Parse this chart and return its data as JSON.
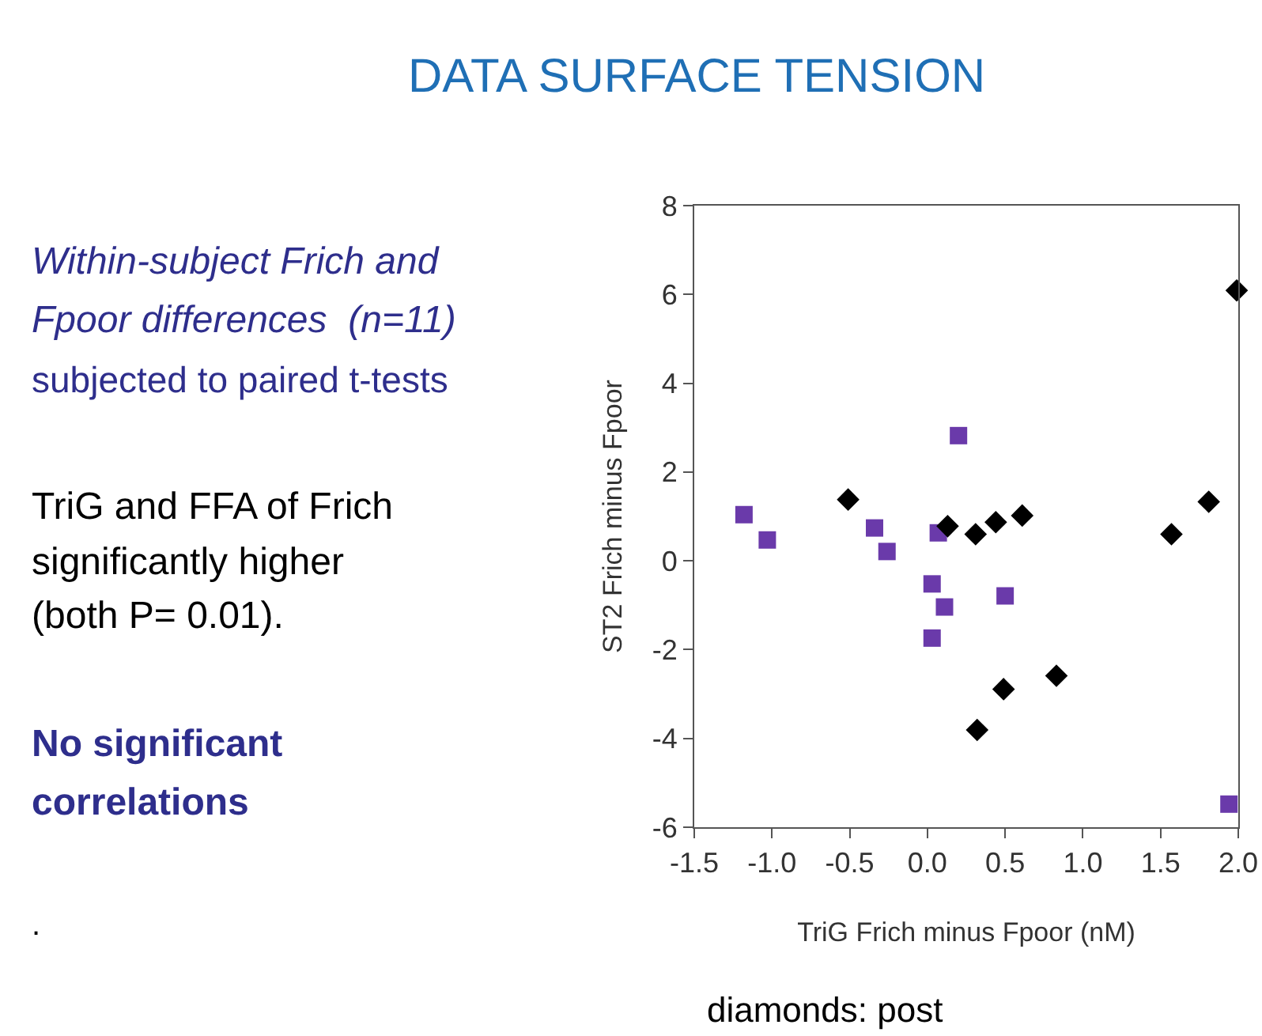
{
  "chart_data": {
    "type": "scatter",
    "title": "DATA SURFACE TENSION",
    "xlabel": "TriG Frich minus Fpoor (nM)",
    "ylabel": "ST2 Frich minus Fpoor",
    "xlim": [
      -1.5,
      2.0
    ],
    "xticks": [
      {
        "value": -1.5,
        "label": "-1.5"
      },
      {
        "value": -1.0,
        "label": "-1.0"
      },
      {
        "value": -0.5,
        "label": "-0.5"
      },
      {
        "value": 0.0,
        "label": "0.0"
      },
      {
        "value": 0.5,
        "label": "0.5"
      },
      {
        "value": 1.0,
        "label": "1.0"
      },
      {
        "value": 1.5,
        "label": "1.5"
      },
      {
        "value": 2.0,
        "label": "2.0"
      }
    ],
    "ylim": [
      -6,
      8
    ],
    "yticks": [
      -6,
      -4,
      -2,
      0,
      2,
      4,
      6,
      8
    ],
    "series": [
      {
        "color": "#6a3aaa",
        "marker": "square",
        "x": [
          -1.18,
          -1.03,
          -0.34,
          -0.26,
          0.07,
          0.03,
          0.11,
          0.03,
          0.2,
          0.5,
          1.94
        ],
        "values": [
          1.04,
          0.47,
          0.74,
          0.21,
          0.63,
          -0.52,
          -1.04,
          -1.74,
          2.82,
          -0.79,
          -5.48
        ]
      },
      {
        "color": "#000000",
        "marker": "diamond",
        "x": [
          -0.51,
          0.13,
          0.31,
          0.44,
          0.61,
          0.32,
          0.49,
          0.83,
          1.57,
          1.81,
          1.99
        ],
        "values": [
          1.38,
          0.78,
          0.6,
          0.87,
          1.02,
          -3.81,
          -2.89,
          -2.59,
          0.6,
          1.33,
          6.09
        ]
      }
    ],
    "annotations": [
      "Within-subject Frich and",
      "Fpoor differences  (n=11)",
      "subjected to paired t-tests",
      "TriG and FFA of Frich",
      "significantly higher",
      "(both P= 0.01).",
      "No significant",
      "correlations",
      ".",
      "diamonds: post"
    ]
  }
}
